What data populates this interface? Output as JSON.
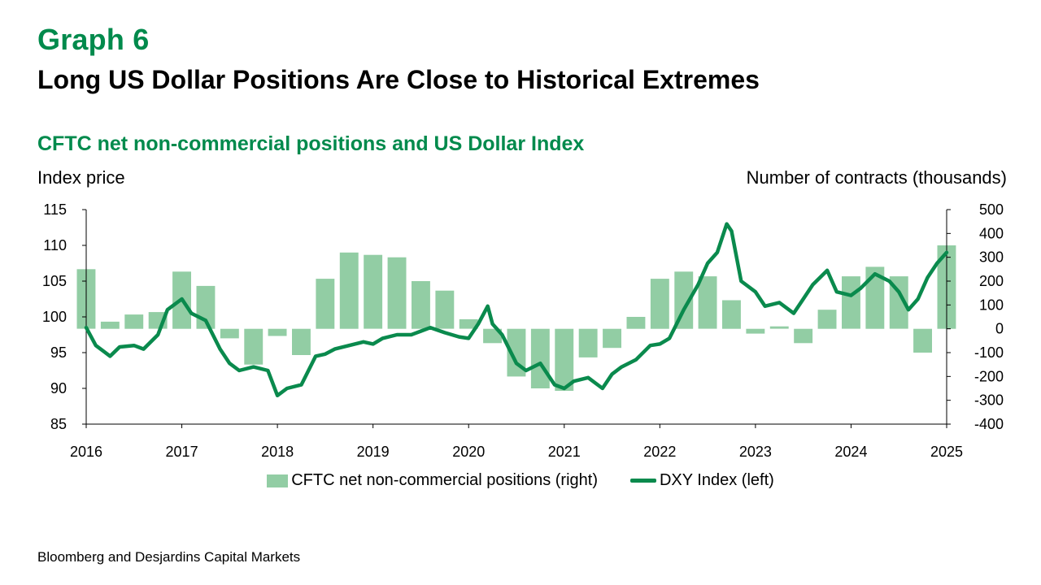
{
  "header": {
    "graph_number": "Graph 6",
    "title": "Long US Dollar Positions Are Close to Historical Extremes",
    "subtitle": "CFTC net non-commercial positions and US Dollar Index"
  },
  "source": "Bloomberg and Desjardins Capital Markets",
  "colors": {
    "accent": "#008a4c",
    "bars": "#92cda4",
    "line": "#0a8a4d"
  },
  "chart_data": {
    "type": "bar+line",
    "ylabel_left": "Index price",
    "ylabel_right": "Number of contracts (thousands)",
    "x_ticks": [
      "2016",
      "2017",
      "2018",
      "2019",
      "2020",
      "2021",
      "2022",
      "2023",
      "2024",
      "2025"
    ],
    "ylim_left": [
      85,
      115
    ],
    "ylim_right": [
      -400,
      500
    ],
    "y_ticks_left": [
      "85",
      "90",
      "95",
      "100",
      "105",
      "110",
      "115"
    ],
    "y_ticks_right": [
      "-400",
      "-300",
      "-200",
      "-100",
      "0",
      "100",
      "200",
      "300",
      "400",
      "500"
    ],
    "grid": false,
    "legend_position": "bottom",
    "series": [
      {
        "name": "CFTC net non-commercial positions (right)",
        "type": "bar",
        "axis": "right",
        "x": [
          2016.0,
          2016.25,
          2016.5,
          2016.75,
          2017.0,
          2017.25,
          2017.5,
          2017.75,
          2018.0,
          2018.25,
          2018.5,
          2018.75,
          2019.0,
          2019.25,
          2019.5,
          2019.75,
          2020.0,
          2020.25,
          2020.5,
          2020.75,
          2021.0,
          2021.25,
          2021.5,
          2021.75,
          2022.0,
          2022.25,
          2022.5,
          2022.75,
          2023.0,
          2023.25,
          2023.5,
          2023.75,
          2024.0,
          2024.25,
          2024.5,
          2024.75,
          2025.0
        ],
        "values": [
          250,
          30,
          60,
          70,
          240,
          180,
          -40,
          -150,
          -30,
          -110,
          210,
          320,
          310,
          300,
          200,
          160,
          40,
          -60,
          -200,
          -250,
          -260,
          -120,
          -80,
          50,
          210,
          240,
          220,
          120,
          -20,
          10,
          -60,
          80,
          220,
          260,
          220,
          -100,
          350
        ]
      },
      {
        "name": "DXY Index (left)",
        "type": "line",
        "axis": "left",
        "x": [
          2016.0,
          2016.1,
          2016.25,
          2016.35,
          2016.5,
          2016.6,
          2016.75,
          2016.85,
          2017.0,
          2017.1,
          2017.25,
          2017.4,
          2017.5,
          2017.6,
          2017.75,
          2017.9,
          2018.0,
          2018.1,
          2018.25,
          2018.4,
          2018.5,
          2018.6,
          2018.75,
          2018.9,
          2019.0,
          2019.1,
          2019.25,
          2019.4,
          2019.5,
          2019.6,
          2019.75,
          2019.9,
          2020.0,
          2020.1,
          2020.2,
          2020.25,
          2020.35,
          2020.5,
          2020.6,
          2020.75,
          2020.9,
          2021.0,
          2021.1,
          2021.25,
          2021.4,
          2021.5,
          2021.6,
          2021.75,
          2021.9,
          2022.0,
          2022.1,
          2022.25,
          2022.4,
          2022.5,
          2022.6,
          2022.7,
          2022.75,
          2022.85,
          2023.0,
          2023.1,
          2023.25,
          2023.4,
          2023.5,
          2023.6,
          2023.75,
          2023.85,
          2024.0,
          2024.1,
          2024.25,
          2024.4,
          2024.5,
          2024.6,
          2024.7,
          2024.8,
          2024.9,
          2025.0
        ],
        "values": [
          98.5,
          96.0,
          94.5,
          95.8,
          96.0,
          95.5,
          97.5,
          101.0,
          102.5,
          100.5,
          99.5,
          95.5,
          93.5,
          92.5,
          93.0,
          92.5,
          89.0,
          90.0,
          90.5,
          94.5,
          94.8,
          95.5,
          96.0,
          96.5,
          96.2,
          97.0,
          97.5,
          97.5,
          98.0,
          98.5,
          97.8,
          97.2,
          97.0,
          99.0,
          101.5,
          99.0,
          97.5,
          93.5,
          92.5,
          93.5,
          90.5,
          90.0,
          91.0,
          91.5,
          90.0,
          92.0,
          93.0,
          94.0,
          96.0,
          96.2,
          97.0,
          101.0,
          104.5,
          107.5,
          109.0,
          113.0,
          112.0,
          105.0,
          103.5,
          101.5,
          102.0,
          100.5,
          102.5,
          104.5,
          106.5,
          103.5,
          103.0,
          104.0,
          106.0,
          105.0,
          103.5,
          101.0,
          102.5,
          105.5,
          107.5,
          109.0
        ]
      }
    ]
  }
}
